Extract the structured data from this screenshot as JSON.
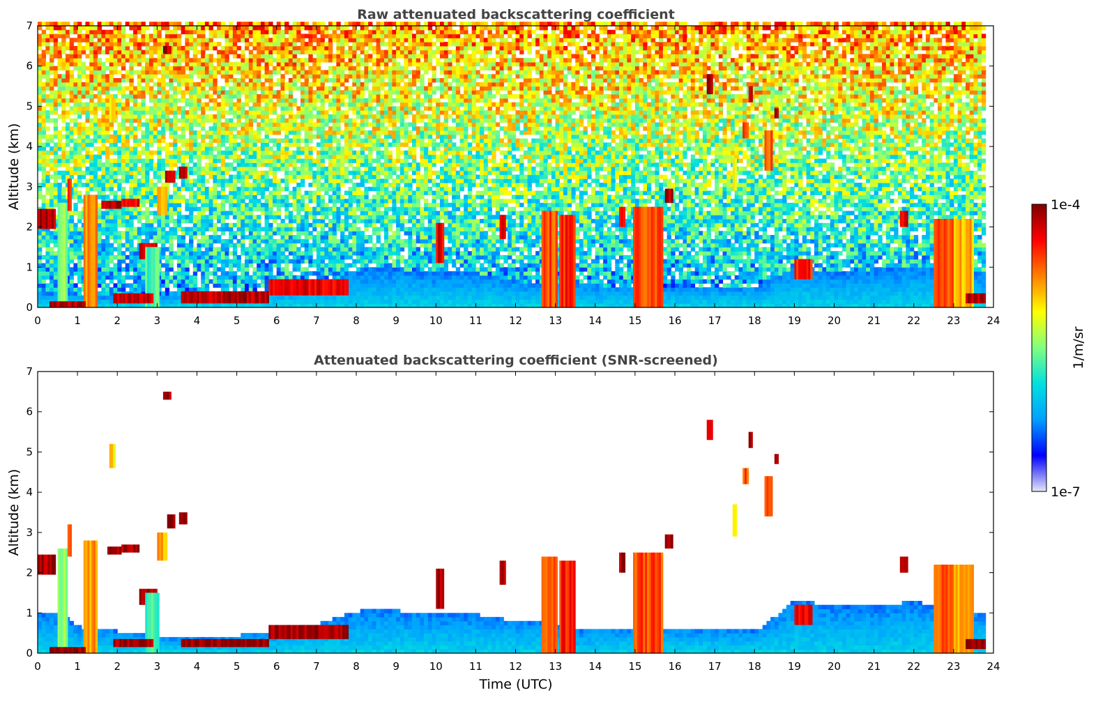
{
  "chart_data": [
    {
      "type": "heatmap",
      "title": "Raw attenuated backscattering coefficient",
      "ylabel": "Altitude (km)",
      "xlabel": "",
      "xlim": [
        0,
        24
      ],
      "ylim": [
        0,
        7
      ],
      "x_ticks": [
        "0",
        "1",
        "2",
        "3",
        "4",
        "5",
        "6",
        "7",
        "8",
        "9",
        "10",
        "11",
        "12",
        "13",
        "14",
        "15",
        "16",
        "17",
        "18",
        "19",
        "20",
        "21",
        "22",
        "23",
        "24"
      ],
      "y_ticks": [
        "0",
        "1",
        "2",
        "3",
        "4",
        "5",
        "6",
        "7"
      ],
      "noise": true,
      "boundary_layer": [
        [
          0,
          0.35
        ],
        [
          1,
          0.3
        ],
        [
          2,
          0.2
        ],
        [
          3,
          0.3
        ],
        [
          4,
          0.25
        ],
        [
          5,
          0.35
        ],
        [
          6,
          0.4
        ],
        [
          7,
          0.5
        ],
        [
          8,
          0.9
        ],
        [
          9,
          0.9
        ],
        [
          10,
          0.8
        ],
        [
          11,
          0.8
        ],
        [
          12,
          0.6
        ],
        [
          13,
          0.6
        ],
        [
          14,
          0.5
        ],
        [
          15,
          0.5
        ],
        [
          16,
          0.5
        ],
        [
          17,
          0.5
        ],
        [
          18,
          0.5
        ],
        [
          19,
          1.0
        ],
        [
          20,
          0.8
        ],
        [
          21,
          0.9
        ],
        [
          22,
          1.0
        ],
        [
          23,
          0.9
        ],
        [
          23.8,
          0.8
        ]
      ],
      "cloud_features": [
        {
          "t0": 0.0,
          "t1": 0.45,
          "z0": 1.95,
          "z1": 2.45,
          "level": 0.95
        },
        {
          "t0": 0.5,
          "t1": 0.75,
          "z0": 0.0,
          "z1": 2.6,
          "level": 0.5
        },
        {
          "t0": 0.75,
          "t1": 0.85,
          "z0": 2.4,
          "z1": 3.2,
          "level": 0.8
        },
        {
          "t0": 1.15,
          "t1": 1.5,
          "z0": 0.0,
          "z1": 2.8,
          "level": 0.75
        },
        {
          "t0": 1.6,
          "t1": 2.1,
          "z0": 2.45,
          "z1": 2.65,
          "level": 0.95
        },
        {
          "t0": 2.1,
          "t1": 2.55,
          "z0": 2.5,
          "z1": 2.7,
          "level": 0.9
        },
        {
          "t0": 2.55,
          "t1": 3.0,
          "z0": 1.2,
          "z1": 1.6,
          "level": 0.9
        },
        {
          "t0": 2.7,
          "t1": 3.05,
          "z0": 0.0,
          "z1": 1.5,
          "level": 0.45
        },
        {
          "t0": 3.0,
          "t1": 3.25,
          "z0": 2.3,
          "z1": 3.0,
          "level": 0.7
        },
        {
          "t0": 3.15,
          "t1": 3.35,
          "z0": 6.3,
          "z1": 6.5,
          "level": 0.95
        },
        {
          "t0": 3.2,
          "t1": 3.45,
          "z0": 3.1,
          "z1": 3.4,
          "level": 0.95
        },
        {
          "t0": 3.55,
          "t1": 3.75,
          "z0": 3.2,
          "z1": 3.5,
          "level": 0.95
        },
        {
          "t0": 1.8,
          "t1": 1.95,
          "z0": 4.6,
          "z1": 5.2,
          "level": 0.65
        },
        {
          "t0": 0.3,
          "t1": 1.2,
          "z0": 0.0,
          "z1": 0.15,
          "level": 0.95
        },
        {
          "t0": 1.9,
          "t1": 2.9,
          "z0": 0.1,
          "z1": 0.35,
          "level": 0.92
        },
        {
          "t0": 3.6,
          "t1": 5.8,
          "z0": 0.1,
          "z1": 0.4,
          "level": 0.95
        },
        {
          "t0": 5.8,
          "t1": 7.8,
          "z0": 0.3,
          "z1": 0.7,
          "level": 0.9
        },
        {
          "t0": 12.65,
          "t1": 13.05,
          "z0": 0.0,
          "z1": 2.4,
          "level": 0.8
        },
        {
          "t0": 13.1,
          "t1": 13.5,
          "z0": 0.0,
          "z1": 2.3,
          "level": 0.85
        },
        {
          "t0": 14.95,
          "t1": 15.7,
          "z0": 0.0,
          "z1": 2.5,
          "level": 0.8
        },
        {
          "t0": 15.75,
          "t1": 15.95,
          "z0": 2.6,
          "z1": 2.95,
          "level": 0.95
        },
        {
          "t0": 16.8,
          "t1": 16.95,
          "z0": 5.3,
          "z1": 5.8,
          "level": 0.95
        },
        {
          "t0": 17.45,
          "t1": 17.55,
          "z0": 2.9,
          "z1": 3.7,
          "level": 0.65
        },
        {
          "t0": 17.7,
          "t1": 17.85,
          "z0": 4.2,
          "z1": 4.6,
          "level": 0.8
        },
        {
          "t0": 17.85,
          "t1": 17.95,
          "z0": 5.1,
          "z1": 5.5,
          "level": 0.95
        },
        {
          "t0": 18.25,
          "t1": 18.45,
          "z0": 3.4,
          "z1": 4.4,
          "level": 0.8
        },
        {
          "t0": 18.5,
          "t1": 18.6,
          "z0": 4.7,
          "z1": 4.95,
          "level": 0.95
        },
        {
          "t0": 19.0,
          "t1": 19.45,
          "z0": 0.7,
          "z1": 1.2,
          "level": 0.85
        },
        {
          "t0": 21.65,
          "t1": 21.85,
          "z0": 2.0,
          "z1": 2.4,
          "level": 0.9
        },
        {
          "t0": 22.5,
          "t1": 23.0,
          "z0": 0.0,
          "z1": 2.2,
          "level": 0.78
        },
        {
          "t0": 23.0,
          "t1": 23.5,
          "z0": 0.0,
          "z1": 2.2,
          "level": 0.7
        },
        {
          "t0": 23.3,
          "t1": 23.8,
          "z0": 0.1,
          "z1": 0.35,
          "level": 0.95
        },
        {
          "t0": 10.0,
          "t1": 10.2,
          "z0": 1.1,
          "z1": 2.1,
          "level": 0.9
        },
        {
          "t0": 11.6,
          "t1": 11.75,
          "z0": 1.7,
          "z1": 2.3,
          "level": 0.9
        },
        {
          "t0": 14.6,
          "t1": 14.75,
          "z0": 2.0,
          "z1": 2.5,
          "level": 0.9
        }
      ]
    },
    {
      "type": "heatmap",
      "title": "Attenuated backscattering coefficient (SNR-screened)",
      "ylabel": "Altitude (km)",
      "xlabel": "Time (UTC)",
      "xlim": [
        0,
        24
      ],
      "ylim": [
        0,
        7
      ],
      "x_ticks": [
        "0",
        "1",
        "2",
        "3",
        "4",
        "5",
        "6",
        "7",
        "8",
        "9",
        "10",
        "11",
        "12",
        "13",
        "14",
        "15",
        "16",
        "17",
        "18",
        "19",
        "20",
        "21",
        "22",
        "23",
        "24"
      ],
      "y_ticks": [
        "0",
        "1",
        "2",
        "3",
        "4",
        "5",
        "6",
        "7"
      ],
      "noise": false,
      "boundary_layer": [
        [
          0,
          0.95
        ],
        [
          0.5,
          0.95
        ],
        [
          1,
          0.6
        ],
        [
          2,
          0.5
        ],
        [
          3,
          0.4
        ],
        [
          4,
          0.35
        ],
        [
          5,
          0.4
        ],
        [
          6,
          0.5
        ],
        [
          7,
          0.7
        ],
        [
          8,
          1.0
        ],
        [
          9,
          1.0
        ],
        [
          10,
          0.9
        ],
        [
          11,
          0.9
        ],
        [
          12,
          0.75
        ],
        [
          12.6,
          0.75
        ],
        [
          13.6,
          0.55
        ],
        [
          14,
          0.6
        ],
        [
          15,
          0.6
        ],
        [
          16,
          0.6
        ],
        [
          17,
          0.6
        ],
        [
          18,
          0.5
        ],
        [
          19,
          1.3
        ],
        [
          20,
          1.1
        ],
        [
          21,
          1.1
        ],
        [
          22,
          1.25
        ],
        [
          23,
          1.0
        ],
        [
          23.8,
          0.9
        ]
      ],
      "cloud_features": [
        {
          "t0": 0.0,
          "t1": 0.45,
          "z0": 1.95,
          "z1": 2.45,
          "level": 0.97
        },
        {
          "t0": 0.5,
          "t1": 0.75,
          "z0": 0.0,
          "z1": 2.6,
          "level": 0.5
        },
        {
          "t0": 0.75,
          "t1": 0.85,
          "z0": 2.4,
          "z1": 3.2,
          "level": 0.8
        },
        {
          "t0": 1.15,
          "t1": 1.5,
          "z0": 0.0,
          "z1": 2.8,
          "level": 0.72
        },
        {
          "t0": 1.75,
          "t1": 2.1,
          "z0": 2.45,
          "z1": 2.65,
          "level": 0.97
        },
        {
          "t0": 2.1,
          "t1": 2.55,
          "z0": 2.5,
          "z1": 2.7,
          "level": 0.95
        },
        {
          "t0": 2.55,
          "t1": 3.0,
          "z0": 1.2,
          "z1": 1.6,
          "level": 0.97
        },
        {
          "t0": 2.7,
          "t1": 3.05,
          "z0": 0.0,
          "z1": 1.5,
          "level": 0.45
        },
        {
          "t0": 3.0,
          "t1": 3.25,
          "z0": 2.3,
          "z1": 3.0,
          "level": 0.7
        },
        {
          "t0": 3.15,
          "t1": 3.35,
          "z0": 6.3,
          "z1": 6.5,
          "level": 0.95
        },
        {
          "t0": 3.25,
          "t1": 3.45,
          "z0": 3.1,
          "z1": 3.45,
          "level": 0.99
        },
        {
          "t0": 3.55,
          "t1": 3.75,
          "z0": 3.2,
          "z1": 3.5,
          "level": 0.99
        },
        {
          "t0": 1.8,
          "t1": 1.95,
          "z0": 4.6,
          "z1": 5.2,
          "level": 0.65
        },
        {
          "t0": 0.3,
          "t1": 1.2,
          "z0": 0.0,
          "z1": 0.15,
          "level": 0.99
        },
        {
          "t0": 1.9,
          "t1": 2.9,
          "z0": 0.15,
          "z1": 0.35,
          "level": 0.98
        },
        {
          "t0": 3.6,
          "t1": 5.8,
          "z0": 0.15,
          "z1": 0.35,
          "level": 0.99
        },
        {
          "t0": 5.8,
          "t1": 7.8,
          "z0": 0.35,
          "z1": 0.7,
          "level": 0.97
        },
        {
          "t0": 12.65,
          "t1": 13.05,
          "z0": 0.0,
          "z1": 2.4,
          "level": 0.8
        },
        {
          "t0": 13.1,
          "t1": 13.5,
          "z0": 0.0,
          "z1": 2.3,
          "level": 0.85
        },
        {
          "t0": 14.95,
          "t1": 15.7,
          "z0": 0.0,
          "z1": 2.5,
          "level": 0.8
        },
        {
          "t0": 15.75,
          "t1": 15.95,
          "z0": 2.6,
          "z1": 2.95,
          "level": 0.99
        },
        {
          "t0": 16.8,
          "t1": 16.95,
          "z0": 5.3,
          "z1": 5.8,
          "level": 0.95
        },
        {
          "t0": 17.45,
          "t1": 17.55,
          "z0": 2.9,
          "z1": 3.7,
          "level": 0.65
        },
        {
          "t0": 17.7,
          "t1": 17.85,
          "z0": 4.2,
          "z1": 4.6,
          "level": 0.8
        },
        {
          "t0": 17.85,
          "t1": 17.95,
          "z0": 5.1,
          "z1": 5.5,
          "level": 0.99
        },
        {
          "t0": 18.25,
          "t1": 18.45,
          "z0": 3.4,
          "z1": 4.4,
          "level": 0.8
        },
        {
          "t0": 18.5,
          "t1": 18.6,
          "z0": 4.7,
          "z1": 4.95,
          "level": 0.99
        },
        {
          "t0": 19.0,
          "t1": 19.45,
          "z0": 0.7,
          "z1": 1.2,
          "level": 0.9
        },
        {
          "t0": 21.65,
          "t1": 21.85,
          "z0": 2.0,
          "z1": 2.4,
          "level": 0.95
        },
        {
          "t0": 22.5,
          "t1": 23.0,
          "z0": 0.0,
          "z1": 2.2,
          "level": 0.78
        },
        {
          "t0": 23.0,
          "t1": 23.5,
          "z0": 0.0,
          "z1": 2.2,
          "level": 0.7
        },
        {
          "t0": 23.3,
          "t1": 23.8,
          "z0": 0.1,
          "z1": 0.35,
          "level": 0.99
        },
        {
          "t0": 10.0,
          "t1": 10.2,
          "z0": 1.1,
          "z1": 2.1,
          "level": 0.97
        },
        {
          "t0": 11.6,
          "t1": 11.75,
          "z0": 1.7,
          "z1": 2.3,
          "level": 0.97
        },
        {
          "t0": 14.6,
          "t1": 14.75,
          "z0": 2.0,
          "z1": 2.5,
          "level": 0.97
        }
      ]
    }
  ],
  "colorbar": {
    "label": "1/m/sr",
    "max_label": "1e-4",
    "min_label": "1e-7",
    "colormap": "jet",
    "colors": [
      "#e6e6f5",
      "#0000ff",
      "#00a0ff",
      "#00e0e0",
      "#80ff80",
      "#ffff00",
      "#ff8000",
      "#ff0000",
      "#800000"
    ]
  }
}
